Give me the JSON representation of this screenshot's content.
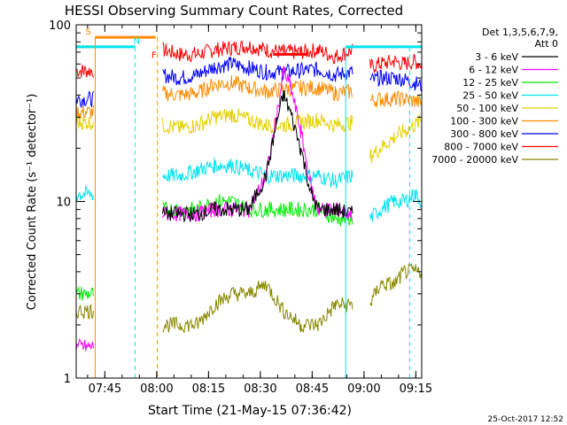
{
  "chart_data": {
    "type": "line",
    "title": "HESSI Observing Summary Count Rates, Corrected",
    "xlabel": "Start Time (21-May-15 07:36:42)",
    "ylabel": "Corrected Count Rate (s⁻¹ detector⁻¹)",
    "y_scale": "log",
    "ylim": [
      1,
      100
    ],
    "xlim_minutes": [
      0,
      100
    ],
    "x_ticks": [
      "07:45",
      "08:00",
      "08:15",
      "08:30",
      "08:45",
      "09:00",
      "09:15"
    ],
    "y_ticks": [
      "1",
      "10",
      "100"
    ],
    "footer_date": "25-Oct-2017 12:52",
    "legend": {
      "placement": "right",
      "header": [
        "Det 1,3,5,6,7,9,",
        "Att 0"
      ],
      "entries": [
        {
          "label": "3 - 6 keV",
          "color": "#000000"
        },
        {
          "label": "6 - 12 keV",
          "color": "#ff00ff"
        },
        {
          "label": "12 - 25 keV",
          "color": "#00ee00"
        },
        {
          "label": "25 - 50 keV",
          "color": "#00e5ee"
        },
        {
          "label": "50 - 100 keV",
          "color": "#e5d000"
        },
        {
          "label": "100 - 300 keV",
          "color": "#ff8c00"
        },
        {
          "label": "300 - 800 keV",
          "color": "#0000ff"
        },
        {
          "label": "800 - 7000 keV",
          "color": "#ff0000"
        },
        {
          "label": "7000 - 20000 keV",
          "color": "#888800"
        }
      ]
    },
    "flags": [
      {
        "label": "S",
        "color": "#ff8c00"
      },
      {
        "label": "N",
        "color": "#00e5ee"
      },
      {
        "label": "F",
        "color": "#ff0000"
      }
    ],
    "series": [
      {
        "name": "800 - 7000 keV",
        "color": "#ff0000",
        "x": [
          0,
          2,
          5,
          6,
          25,
          30,
          35,
          40,
          45,
          50,
          55,
          60,
          65,
          70,
          75,
          80,
          82,
          85,
          88,
          92,
          95,
          98,
          100
        ],
        "y": [
          55,
          55,
          55,
          null,
          72,
          68,
          68,
          72,
          74,
          76,
          72,
          70,
          70,
          72,
          66,
          72,
          null,
          58,
          60,
          62,
          60,
          62,
          60
        ]
      },
      {
        "name": "300 - 800 keV",
        "color": "#0000ff",
        "x": [
          0,
          2,
          5,
          6,
          25,
          30,
          35,
          40,
          45,
          50,
          55,
          60,
          65,
          70,
          75,
          80,
          82,
          85,
          88,
          92,
          95,
          98,
          100
        ],
        "y": [
          38,
          38,
          38,
          null,
          52,
          50,
          52,
          58,
          60,
          57,
          54,
          54,
          55,
          56,
          52,
          54,
          null,
          48,
          50,
          50,
          49,
          47,
          45
        ]
      },
      {
        "name": "100 - 300 keV",
        "color": "#ff8c00",
        "x": [
          0,
          2,
          5,
          6,
          25,
          30,
          35,
          40,
          45,
          50,
          55,
          60,
          65,
          70,
          75,
          80,
          82,
          85,
          88,
          92,
          95,
          98,
          100
        ],
        "y": [
          32,
          32,
          32,
          null,
          41,
          40,
          41,
          46,
          47,
          44,
          42,
          43,
          44,
          44,
          41,
          42,
          null,
          37,
          38,
          38,
          38,
          37,
          36
        ]
      },
      {
        "name": "50 - 100 keV",
        "color": "#e5d000",
        "x": [
          0,
          2,
          5,
          6,
          25,
          30,
          35,
          40,
          45,
          50,
          55,
          60,
          65,
          70,
          75,
          80,
          82,
          85,
          88,
          92,
          95,
          98,
          100
        ],
        "y": [
          28,
          28,
          28,
          null,
          27,
          26,
          27,
          30,
          31,
          29,
          27,
          27,
          28,
          29,
          27,
          28,
          null,
          18,
          20,
          23,
          25,
          27,
          29
        ]
      },
      {
        "name": "25 - 50 keV",
        "color": "#00e5ee",
        "x": [
          0,
          2,
          5,
          6,
          25,
          30,
          35,
          40,
          45,
          50,
          55,
          60,
          65,
          70,
          75,
          80,
          82,
          85,
          88,
          92,
          95,
          98,
          100
        ],
        "y": [
          11,
          11,
          11,
          null,
          14,
          14,
          15,
          16,
          16,
          15,
          14,
          14,
          14,
          14,
          13,
          14,
          null,
          8,
          9,
          10,
          10,
          11,
          10
        ]
      },
      {
        "name": "12 - 25 keV",
        "color": "#00ee00",
        "x": [
          0,
          2,
          5,
          6,
          25,
          30,
          35,
          40,
          45,
          50,
          55,
          60,
          65,
          70,
          75,
          80,
          82
        ],
        "y": [
          3,
          3,
          3,
          null,
          9,
          9,
          9,
          10,
          10,
          9,
          9,
          9,
          9,
          9,
          8,
          8,
          null
        ]
      },
      {
        "name": "6 - 12 keV",
        "color": "#ff00ff",
        "x": [
          0,
          2,
          5,
          6,
          25,
          30,
          35,
          40,
          45,
          50,
          55,
          58,
          60,
          62,
          65,
          68,
          70,
          72,
          75,
          80
        ],
        "y": [
          1.5,
          1.5,
          1.5,
          null,
          8.5,
          8.5,
          8.5,
          9,
          9,
          9,
          14,
          30,
          55,
          45,
          25,
          12,
          9,
          9,
          9,
          8.5
        ]
      },
      {
        "name": "3 - 6 keV",
        "color": "#000000",
        "x": [
          25,
          30,
          35,
          40,
          45,
          50,
          55,
          58,
          60,
          62,
          65,
          68,
          70,
          72,
          75,
          80
        ],
        "y": [
          8.5,
          8.5,
          8.5,
          9,
          9,
          9,
          14,
          28,
          40,
          32,
          20,
          11,
          9,
          9,
          9,
          8.5
        ]
      },
      {
        "name": "7000 - 20000 keV",
        "color": "#888800",
        "x": [
          0,
          2,
          5,
          6,
          25,
          30,
          35,
          40,
          45,
          50,
          55,
          60,
          65,
          70,
          75,
          80,
          82,
          85,
          88,
          92,
          95,
          98,
          100
        ],
        "y": [
          2.4,
          2.4,
          2.4,
          null,
          2,
          2,
          2,
          2.6,
          3,
          3,
          3.4,
          2.4,
          2,
          2,
          2.6,
          2.6,
          null,
          2.6,
          3.4,
          3.4,
          4,
          4,
          4
        ]
      }
    ]
  }
}
